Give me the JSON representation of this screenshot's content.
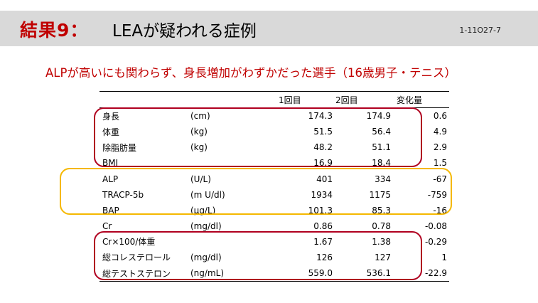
{
  "header": {
    "result_label": "結果9：",
    "title": "LEAが疑われる症例",
    "slide_id": "1-11O27-7"
  },
  "subtitle": "ALPが高いにも関わらず、身長増加がわずかだった選手（16歳男子・テニス）",
  "table": {
    "columns": [
      "",
      "",
      "1回目",
      "2回目",
      "変化量"
    ],
    "rows": [
      {
        "name": "身長",
        "unit": "(cm)",
        "v1": "174.3",
        "v2": "174.9",
        "change": "0.6"
      },
      {
        "name": "体重",
        "unit": "(kg)",
        "v1": "51.5",
        "v2": "56.4",
        "change": "4.9"
      },
      {
        "name": "除脂肪量",
        "unit": "(kg)",
        "v1": "48.2",
        "v2": "51.1",
        "change": "2.9"
      },
      {
        "name": "BMI",
        "unit": "",
        "v1": "16.9",
        "v2": "18.4",
        "change": "1.5"
      },
      {
        "name": "ALP",
        "unit": "(U/L)",
        "v1": "401",
        "v2": "334",
        "change": "-67"
      },
      {
        "name": "TRACP-5b",
        "unit": "(m U/dl)",
        "v1": "1934",
        "v2": "1175",
        "change": "-759"
      },
      {
        "name": "BAP",
        "unit": "(μg/L)",
        "v1": "101.3",
        "v2": "85.3",
        "change": "-16"
      },
      {
        "name": "Cr",
        "unit": "(mg/dl)",
        "v1": "0.86",
        "v2": "0.78",
        "change": "-0.08"
      },
      {
        "name": "Cr×100/体重",
        "unit": "",
        "v1": "1.67",
        "v2": "1.38",
        "change": "-0.29"
      },
      {
        "name": "総コレステロール",
        "unit": "(mg/dl)",
        "v1": "126",
        "v2": "127",
        "change": "1"
      },
      {
        "name": "総テストステロン",
        "unit": "(ng/mL)",
        "v1": "559.0",
        "v2": "536.1",
        "change": "-22.9"
      }
    ]
  },
  "colors": {
    "accent_red": "#c00000",
    "group_red": "#b0001f",
    "group_yellow": "#f5b800",
    "header_bg": "#d9d9d9"
  }
}
